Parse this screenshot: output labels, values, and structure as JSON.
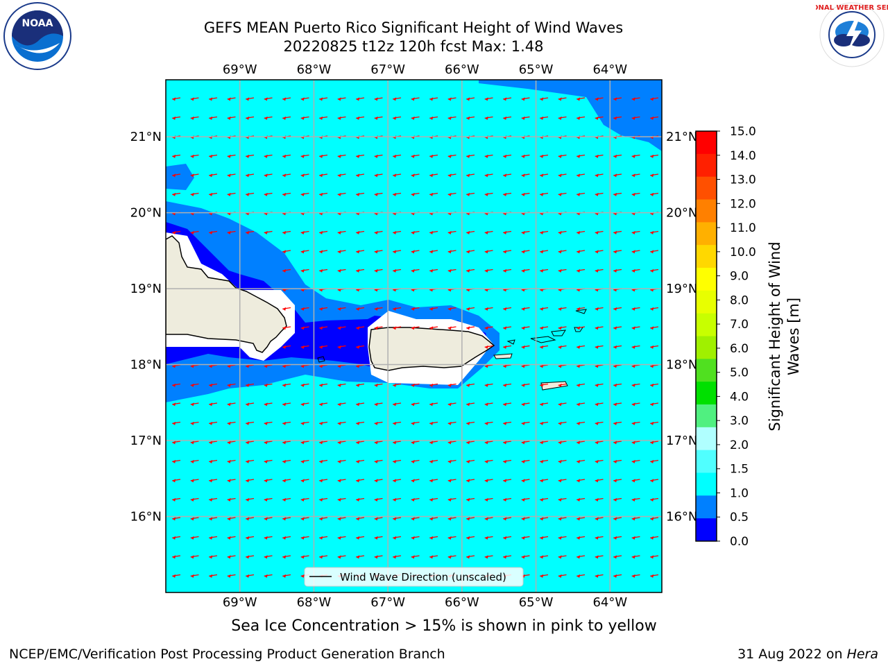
{
  "title": "GEFS MEAN Puerto Rico Significant Height of Wind Waves",
  "subtitle": "20220825 t12z 120h fcst   Max: 1.48",
  "logos": {
    "left_text": "NOAA",
    "right_text": "NATIONAL WEATHER SERVICE"
  },
  "map": {
    "lon_labels": [
      "69°W",
      "68°W",
      "67°W",
      "66°W",
      "65°W",
      "64°W"
    ],
    "lat_labels": [
      "21°N",
      "20°N",
      "19°N",
      "18°N",
      "17°N",
      "16°N"
    ],
    "lon_range": [
      -70.0,
      -63.3
    ],
    "lat_range": [
      15.0,
      21.75
    ],
    "legend_label": "Wind Wave Direction (unscaled)",
    "colors": {
      "ocean": "#00ffff",
      "band_0_5_1": "#0080ff",
      "band_0_0_5": "#0000ff",
      "land": "#eeecdd",
      "arrow": "#ff0000",
      "grid": "#b0b0b0"
    }
  },
  "colorbar": {
    "label": "Significant Height of Wind Waves [m]",
    "label_line1": "Significant Height of Wind",
    "label_line2": "Waves [m]",
    "ticks": [
      "15.0",
      "14.0",
      "13.0",
      "12.0",
      "11.0",
      "10.0",
      "9.0",
      "8.0",
      "7.0",
      "6.0",
      "5.0",
      "4.0",
      "3.0",
      "2.0",
      "1.5",
      "1.0",
      "0.5",
      "0.0"
    ],
    "colors_top_to_bottom": [
      "#ff0000",
      "#ff2000",
      "#ff5000",
      "#ff8000",
      "#ffb000",
      "#ffd800",
      "#ffff00",
      "#e8ff00",
      "#c8ff00",
      "#a0f000",
      "#50e020",
      "#00e000",
      "#50f080",
      "#b0ffff",
      "#50ffff",
      "#00ffff",
      "#0080ff",
      "#0000ff"
    ]
  },
  "note": "Sea Ice Concentration > 15% is shown in pink to yellow",
  "footer": {
    "left": "NCEP/EMC/Verification Post Processing Product Generation Branch",
    "right_prefix": "31 Aug 2022 on ",
    "right_machine": "Hera"
  }
}
